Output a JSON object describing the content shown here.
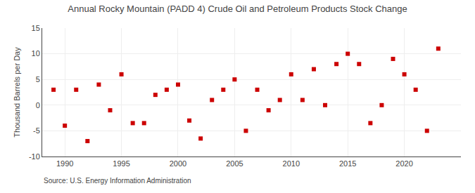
{
  "chart_data": {
    "type": "scatter",
    "title": "Annual Rocky Mountain (PADD 4) Crude Oil and Petroleum Products Stock Change",
    "ylabel": "Thousand Barrels per Day",
    "annotations": [
      "Source: U.S. Energy Information Administration"
    ],
    "x": [
      1989,
      1990,
      1991,
      1992,
      1993,
      1994,
      1995,
      1996,
      1997,
      1998,
      1999,
      2000,
      2001,
      2002,
      2003,
      2004,
      2005,
      2006,
      2007,
      2008,
      2009,
      2010,
      2011,
      2012,
      2013,
      2014,
      2015,
      2016,
      2017,
      2018,
      2019,
      2020,
      2021,
      2022,
      2023
    ],
    "values": [
      3.0,
      -4.0,
      3.0,
      -7.0,
      4.0,
      -1.0,
      6.0,
      -3.5,
      -3.5,
      2.0,
      3.0,
      4.0,
      -3.0,
      -6.5,
      1.0,
      3.0,
      5.0,
      -5.0,
      3.0,
      -1.0,
      1.0,
      6.0,
      1.0,
      7.0,
      0.0,
      8.0,
      10.0,
      8.0,
      -3.5,
      0.0,
      9.0,
      6.0,
      3.0,
      -5.0,
      11.0
    ],
    "color": "#cc0000",
    "marker": "square",
    "xlim": [
      1988,
      2025
    ],
    "ylim": [
      -10,
      15
    ],
    "xticks": [
      1990,
      1995,
      2000,
      2005,
      2010,
      2015,
      2020
    ],
    "yticks": [
      -10,
      -5,
      0,
      5,
      10,
      15
    ],
    "grid": true
  }
}
